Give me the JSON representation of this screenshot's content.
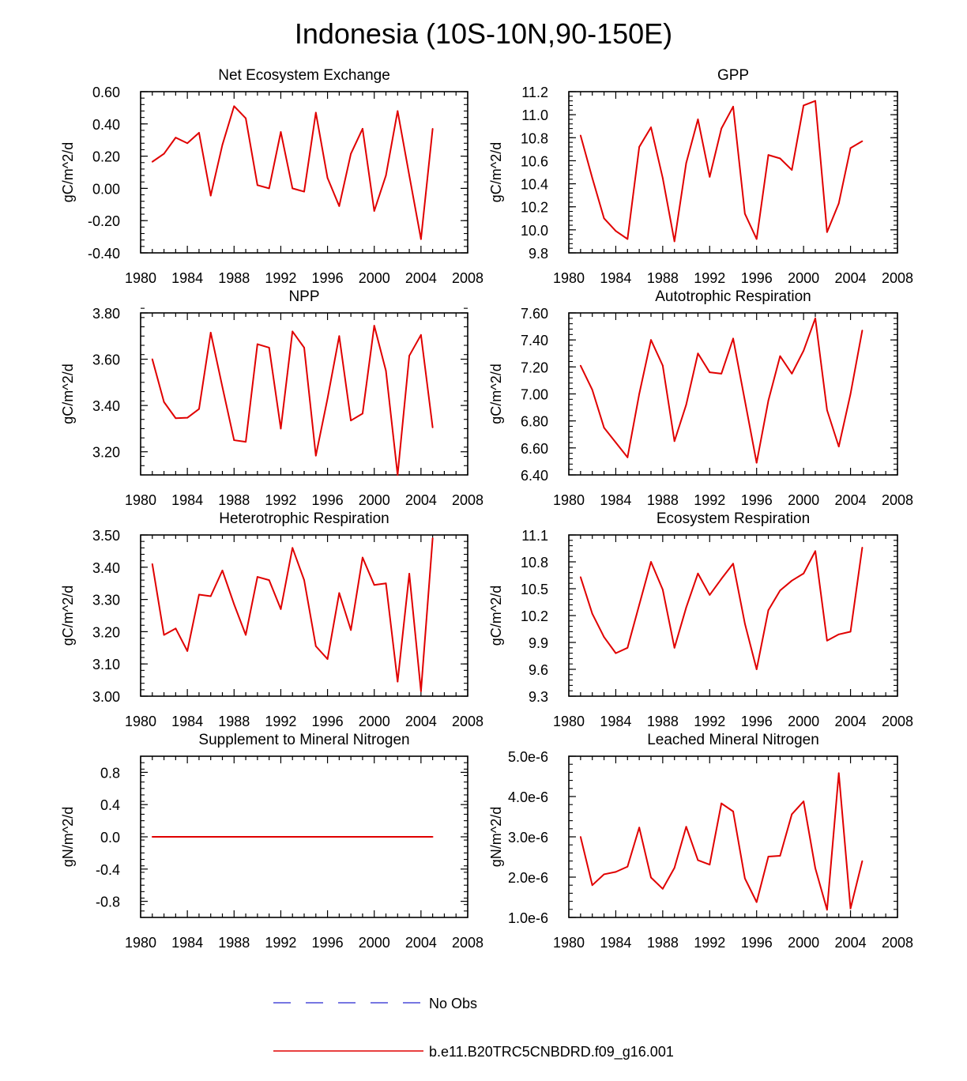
{
  "title": "Indonesia (10S-10N,90-150E)",
  "legend": {
    "entries": [
      {
        "label": "No Obs",
        "color": "#4a4ad8",
        "style": "dashed"
      },
      {
        "label": "b.e11.B20TRC5CNBDRD.f09_g16.001",
        "color": "#e00000",
        "style": "solid"
      }
    ]
  },
  "chart_data": [
    {
      "type": "line",
      "title": "Net Ecosystem Exchange",
      "ylabel": "gC/m^2/d",
      "xlim": [
        1980,
        2008
      ],
      "ylim": [
        -0.4,
        0.6
      ],
      "xticks": [
        "1980",
        "1984",
        "1988",
        "1992",
        "1996",
        "2000",
        "2004",
        "2008"
      ],
      "yticks": [
        {
          "v": -0.4,
          "label": "-0.40"
        },
        {
          "v": -0.2,
          "label": "-0.20"
        },
        {
          "v": 0.0,
          "label": "0.00"
        },
        {
          "v": 0.2,
          "label": "0.20"
        },
        {
          "v": 0.4,
          "label": "0.40"
        },
        {
          "v": 0.6,
          "label": "0.60"
        }
      ],
      "series": [
        {
          "name": "b.e11.B20TRC5CNBDRD.f09_g16.001",
          "x": [
            1981,
            1982,
            1983,
            1984,
            1985,
            1986,
            1987,
            1988,
            1989,
            1990,
            1991,
            1992,
            1993,
            1994,
            1995,
            1996,
            1997,
            1998,
            1999,
            2000,
            2001,
            2002,
            2003,
            2004,
            2005
          ],
          "values": [
            0.165,
            0.215,
            0.315,
            0.28,
            0.345,
            -0.045,
            0.27,
            0.51,
            0.435,
            0.02,
            0.0,
            0.35,
            0.0,
            -0.02,
            0.47,
            0.065,
            -0.11,
            0.215,
            0.37,
            -0.14,
            0.08,
            0.48,
            0.08,
            -0.315,
            0.37
          ]
        }
      ]
    },
    {
      "type": "line",
      "title": "GPP",
      "ylabel": "gC/m^2/d",
      "xlim": [
        1980,
        2008
      ],
      "ylim": [
        9.8,
        11.2
      ],
      "xticks": [
        "1980",
        "1984",
        "1988",
        "1992",
        "1996",
        "2000",
        "2004",
        "2008"
      ],
      "yticks": [
        {
          "v": 9.8,
          "label": "9.8"
        },
        {
          "v": 10.0,
          "label": "10.0"
        },
        {
          "v": 10.2,
          "label": "10.2"
        },
        {
          "v": 10.4,
          "label": "10.4"
        },
        {
          "v": 10.6,
          "label": "10.6"
        },
        {
          "v": 10.8,
          "label": "10.8"
        },
        {
          "v": 11.0,
          "label": "11.0"
        },
        {
          "v": 11.2,
          "label": "11.2"
        }
      ],
      "series": [
        {
          "name": "b.e11.B20TRC5CNBDRD.f09_g16.001",
          "x": [
            1981,
            1982,
            1983,
            1984,
            1985,
            1986,
            1987,
            1988,
            1989,
            1990,
            1991,
            1992,
            1993,
            1994,
            1995,
            1996,
            1997,
            1998,
            1999,
            2000,
            2001,
            2002,
            2003,
            2004,
            2005
          ],
          "values": [
            10.82,
            10.45,
            10.1,
            9.99,
            9.92,
            10.72,
            10.89,
            10.45,
            9.9,
            10.58,
            10.96,
            10.46,
            10.88,
            11.07,
            10.14,
            9.92,
            10.65,
            10.62,
            10.52,
            11.08,
            11.12,
            9.98,
            10.23,
            10.71,
            10.77
          ]
        }
      ]
    },
    {
      "type": "line",
      "title": "NPP",
      "ylabel": "gC/m^2/d",
      "xlim": [
        1980,
        2008
      ],
      "ylim": [
        3.1,
        3.8
      ],
      "xticks": [
        "1980",
        "1984",
        "1988",
        "1992",
        "1996",
        "2000",
        "2004",
        "2008"
      ],
      "yticks": [
        {
          "v": 3.2,
          "label": "3.20"
        },
        {
          "v": 3.4,
          "label": "3.40"
        },
        {
          "v": 3.6,
          "label": "3.60"
        },
        {
          "v": 3.8,
          "label": "3.80"
        }
      ],
      "series": [
        {
          "name": "b.e11.B20TRC5CNBDRD.f09_g16.001",
          "x": [
            1981,
            1982,
            1983,
            1984,
            1985,
            1986,
            1987,
            1988,
            1989,
            1990,
            1991,
            1992,
            1993,
            1994,
            1995,
            1996,
            1997,
            1998,
            1999,
            2000,
            2001,
            2002,
            2003,
            2004,
            2005
          ],
          "values": [
            3.6,
            3.415,
            3.345,
            3.347,
            3.385,
            3.715,
            3.48,
            3.25,
            3.243,
            3.665,
            3.65,
            3.3,
            3.72,
            3.65,
            3.183,
            3.43,
            3.7,
            3.335,
            3.365,
            3.745,
            3.55,
            3.1,
            3.615,
            3.705,
            3.305
          ]
        }
      ]
    },
    {
      "type": "line",
      "title": "Autotrophic Respiration",
      "ylabel": "gC/m^2/d",
      "xlim": [
        1980,
        2008
      ],
      "ylim": [
        6.4,
        7.6
      ],
      "xticks": [
        "1980",
        "1984",
        "1988",
        "1992",
        "1996",
        "2000",
        "2004",
        "2008"
      ],
      "yticks": [
        {
          "v": 6.4,
          "label": "6.40"
        },
        {
          "v": 6.6,
          "label": "6.60"
        },
        {
          "v": 6.8,
          "label": "6.80"
        },
        {
          "v": 7.0,
          "label": "7.00"
        },
        {
          "v": 7.2,
          "label": "7.20"
        },
        {
          "v": 7.4,
          "label": "7.40"
        },
        {
          "v": 7.6,
          "label": "7.60"
        }
      ],
      "series": [
        {
          "name": "b.e11.B20TRC5CNBDRD.f09_g16.001",
          "x": [
            1981,
            1982,
            1983,
            1984,
            1985,
            1986,
            1987,
            1988,
            1989,
            1990,
            1991,
            1992,
            1993,
            1994,
            1995,
            1996,
            1997,
            1998,
            1999,
            2000,
            2001,
            2002,
            2003,
            2004,
            2005
          ],
          "values": [
            7.21,
            7.03,
            6.75,
            6.64,
            6.53,
            7.0,
            7.4,
            7.21,
            6.65,
            6.92,
            7.3,
            7.16,
            7.15,
            7.41,
            6.95,
            6.49,
            6.95,
            7.28,
            7.15,
            7.32,
            7.56,
            6.88,
            6.61,
            7.0,
            7.47
          ]
        }
      ]
    },
    {
      "type": "line",
      "title": "Heterotrophic Respiration",
      "ylabel": "gC/m^2/d",
      "xlim": [
        1980,
        2008
      ],
      "ylim": [
        3.0,
        3.5
      ],
      "xticks": [
        "1980",
        "1984",
        "1988",
        "1992",
        "1996",
        "2000",
        "2004",
        "2008"
      ],
      "yticks": [
        {
          "v": 3.0,
          "label": "3.00"
        },
        {
          "v": 3.1,
          "label": "3.10"
        },
        {
          "v": 3.2,
          "label": "3.20"
        },
        {
          "v": 3.3,
          "label": "3.30"
        },
        {
          "v": 3.4,
          "label": "3.40"
        },
        {
          "v": 3.5,
          "label": "3.50"
        }
      ],
      "series": [
        {
          "name": "b.e11.B20TRC5CNBDRD.f09_g16.001",
          "x": [
            1981,
            1982,
            1983,
            1984,
            1985,
            1986,
            1987,
            1988,
            1989,
            1990,
            1991,
            1992,
            1993,
            1994,
            1995,
            1996,
            1997,
            1998,
            1999,
            2000,
            2001,
            2002,
            2003,
            2004,
            2005
          ],
          "values": [
            3.41,
            3.19,
            3.21,
            3.14,
            3.315,
            3.31,
            3.39,
            3.285,
            3.19,
            3.37,
            3.36,
            3.27,
            3.46,
            3.36,
            3.155,
            3.115,
            3.32,
            3.205,
            3.43,
            3.345,
            3.35,
            3.045,
            3.38,
            3.015,
            3.49
          ]
        }
      ]
    },
    {
      "type": "line",
      "title": "Ecosystem Respiration",
      "ylabel": "gC/m^2/d",
      "xlim": [
        1980,
        2008
      ],
      "ylim": [
        9.3,
        11.1
      ],
      "xticks": [
        "1980",
        "1984",
        "1988",
        "1992",
        "1996",
        "2000",
        "2004",
        "2008"
      ],
      "yticks": [
        {
          "v": 9.3,
          "label": "9.3"
        },
        {
          "v": 9.6,
          "label": "9.6"
        },
        {
          "v": 9.9,
          "label": "9.9"
        },
        {
          "v": 10.2,
          "label": "10.2"
        },
        {
          "v": 10.5,
          "label": "10.5"
        },
        {
          "v": 10.8,
          "label": "10.8"
        },
        {
          "v": 11.1,
          "label": "11.1"
        }
      ],
      "series": [
        {
          "name": "b.e11.B20TRC5CNBDRD.f09_g16.001",
          "x": [
            1981,
            1982,
            1983,
            1984,
            1985,
            1986,
            1987,
            1988,
            1989,
            1990,
            1991,
            1992,
            1993,
            1994,
            1995,
            1996,
            1997,
            1998,
            1999,
            2000,
            2001,
            2002,
            2003,
            2004,
            2005
          ],
          "values": [
            10.63,
            10.22,
            9.96,
            9.78,
            9.84,
            10.32,
            10.8,
            10.49,
            9.84,
            10.29,
            10.67,
            10.43,
            10.61,
            10.78,
            10.11,
            9.6,
            10.26,
            10.48,
            10.59,
            10.67,
            10.92,
            9.92,
            9.99,
            10.02,
            10.96
          ]
        }
      ]
    },
    {
      "type": "line",
      "title": "Supplement to Mineral Nitrogen",
      "ylabel": "gN/m^2/d",
      "xlim": [
        1980,
        2008
      ],
      "ylim": [
        -1.0,
        1.0
      ],
      "xticks": [
        "1980",
        "1984",
        "1988",
        "1992",
        "1996",
        "2000",
        "2004",
        "2008"
      ],
      "yticks": [
        {
          "v": -0.8,
          "label": "-0.8"
        },
        {
          "v": -0.4,
          "label": "-0.4"
        },
        {
          "v": 0.0,
          "label": "0.0"
        },
        {
          "v": 0.4,
          "label": "0.4"
        },
        {
          "v": 0.8,
          "label": "0.8"
        }
      ],
      "series": [
        {
          "name": "b.e11.B20TRC5CNBDRD.f09_g16.001",
          "x": [
            1981,
            1982,
            1983,
            1984,
            1985,
            1986,
            1987,
            1988,
            1989,
            1990,
            1991,
            1992,
            1993,
            1994,
            1995,
            1996,
            1997,
            1998,
            1999,
            2000,
            2001,
            2002,
            2003,
            2004,
            2005
          ],
          "values": [
            0,
            0,
            0,
            0,
            0,
            0,
            0,
            0,
            0,
            0,
            0,
            0,
            0,
            0,
            0,
            0,
            0,
            0,
            0,
            0,
            0,
            0,
            0,
            0,
            0
          ]
        }
      ]
    },
    {
      "type": "line",
      "title": "Leached Mineral Nitrogen",
      "ylabel": "gN/m^2/d",
      "xlim": [
        1980,
        2008
      ],
      "ylim": [
        1e-06,
        5e-06
      ],
      "xticks": [
        "1980",
        "1984",
        "1988",
        "1992",
        "1996",
        "2000",
        "2004",
        "2008"
      ],
      "yticks": [
        {
          "v": 1e-06,
          "label": "1.0e-6"
        },
        {
          "v": 2e-06,
          "label": "2.0e-6"
        },
        {
          "v": 3e-06,
          "label": "3.0e-6"
        },
        {
          "v": 4e-06,
          "label": "4.0e-6"
        },
        {
          "v": 5e-06,
          "label": "5.0e-6"
        }
      ],
      "series": [
        {
          "name": "b.e11.B20TRC5CNBDRD.f09_g16.001",
          "x": [
            1981,
            1982,
            1983,
            1984,
            1985,
            1986,
            1987,
            1988,
            1989,
            1990,
            1991,
            1992,
            1993,
            1994,
            1995,
            1996,
            1997,
            1998,
            1999,
            2000,
            2001,
            2002,
            2003,
            2004,
            2005
          ],
          "values": [
            3e-06,
            1.8e-06,
            2.07e-06,
            2.13e-06,
            2.26e-06,
            3.23e-06,
            1.99e-06,
            1.71e-06,
            2.23e-06,
            3.25e-06,
            2.42e-06,
            2.31e-06,
            3.83e-06,
            3.63e-06,
            1.97e-06,
            1.38e-06,
            2.51e-06,
            2.53e-06,
            3.56e-06,
            3.88e-06,
            2.22e-06,
            1.19e-06,
            4.58e-06,
            1.22e-06,
            2.4e-06
          ]
        }
      ]
    }
  ]
}
